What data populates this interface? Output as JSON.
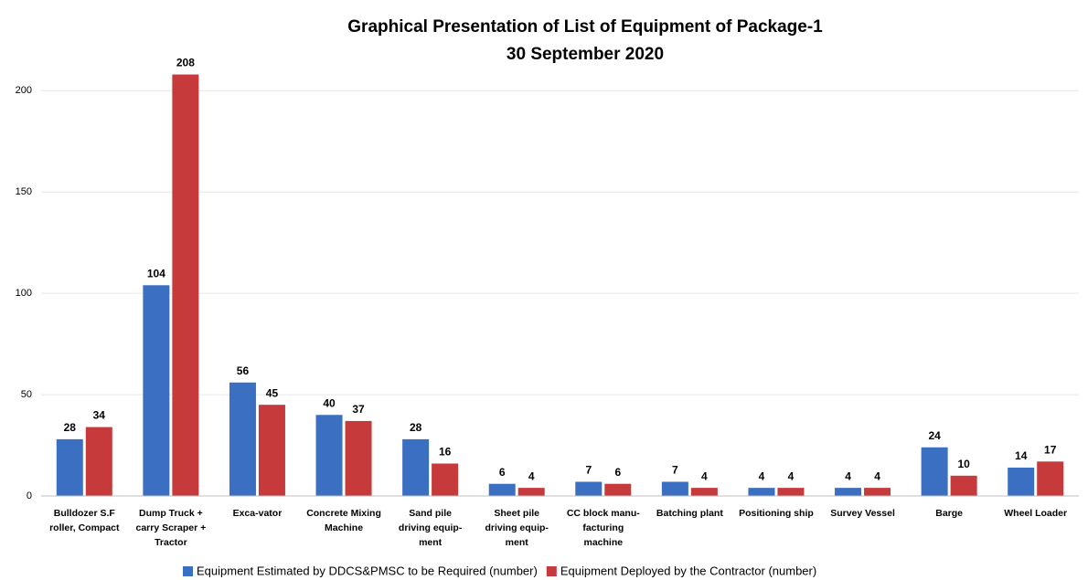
{
  "chart_data": {
    "type": "bar",
    "title": [
      "Graphical Presentation of List of Equipment of Package-1",
      "30 September 2020"
    ],
    "categories": [
      [
        "Bulldozer S.F",
        "roller, Compact"
      ],
      [
        "Dump Truck +",
        "carry Scraper +",
        "Tractor"
      ],
      [
        "Exca-vator"
      ],
      [
        "Concrete Mixing",
        "Machine"
      ],
      [
        "Sand pile",
        "driving equip-",
        "ment"
      ],
      [
        "Sheet pile",
        "driving equip-",
        "ment"
      ],
      [
        "CC block manu-",
        "facturing",
        "machine"
      ],
      [
        "Batching plant"
      ],
      [
        "Positioning ship"
      ],
      [
        "Survey Vessel"
      ],
      [
        "Barge"
      ],
      [
        "Wheel Loader"
      ]
    ],
    "series": [
      {
        "name": "Equipment Estimated by DDCS&PMSC to be Required (number)",
        "color": "#3b6fc1",
        "values": [
          28,
          104,
          56,
          40,
          28,
          6,
          7,
          7,
          4,
          4,
          24,
          14
        ]
      },
      {
        "name": "Equipment Deployed by the Contractor (number)",
        "color": "#c73a3c",
        "values": [
          34,
          208,
          45,
          37,
          16,
          4,
          6,
          4,
          4,
          4,
          10,
          17
        ]
      }
    ],
    "ylim": [
      0,
      238
    ],
    "yticks": [
      0,
      50,
      100,
      150,
      200
    ],
    "grid": true,
    "legend": "bottom"
  }
}
